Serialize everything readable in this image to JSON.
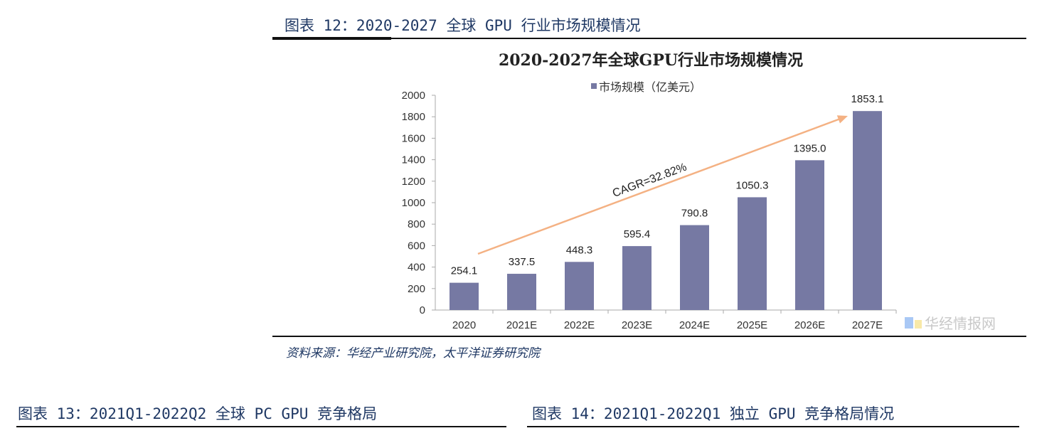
{
  "figure12": {
    "caption": "图表 12：2020-2027 全球 GPU 行业市场规模情况",
    "source": "资料来源：华经产业研究院，太平洋证券研究院",
    "watermark": "华经情报网"
  },
  "figure13": {
    "caption": "图表 13：2021Q1-2022Q2 全球 PC GPU 竞争格局"
  },
  "figure14": {
    "caption": "图表 14：2021Q1-2022Q1 独立 GPU 竞争格局情况"
  },
  "chart_data": {
    "type": "bar",
    "title": "2020-2027年全球GPU行业市场规模情况",
    "categories": [
      "2020",
      "2021E",
      "2022E",
      "2023E",
      "2024E",
      "2025E",
      "2026E",
      "2027E"
    ],
    "series": [
      {
        "name": "市场规模（亿美元）",
        "values": [
          254.1,
          337.5,
          448.3,
          595.4,
          790.8,
          1050.3,
          1395.0,
          1853.1
        ]
      }
    ],
    "data_labels": [
      "254.1",
      "337.5",
      "448.3",
      "595.4",
      "790.8",
      "1050.3",
      "1395.0",
      "1853.1"
    ],
    "ylim": [
      0,
      2000
    ],
    "yticks": [
      0,
      200,
      400,
      600,
      800,
      1000,
      1200,
      1400,
      1600,
      1800,
      2000
    ],
    "legend_position": "top",
    "grid": false,
    "annotation": "CAGR=32.82%",
    "colors": {
      "bar": "#7679a3",
      "arrow": "#f4b183",
      "caption": "#1f3864"
    }
  }
}
